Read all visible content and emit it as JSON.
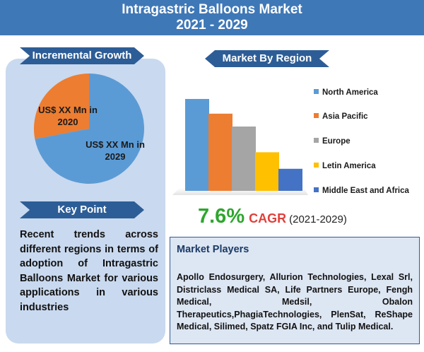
{
  "header": {
    "title_line1": "Intragastric Balloons Market",
    "title_line2": "2021 - 2029"
  },
  "incremental": {
    "ribbon_label": "Incremental Growth",
    "label_2020": "US$ XX Mn in 2020",
    "label_2029": "US$ XX Mn in 2029"
  },
  "keypoint": {
    "ribbon_label": "Key Point",
    "text": "Recent trends across different regions in terms of adoption of Intragastric Balloons Market for various applications in various industries"
  },
  "region": {
    "ribbon_label": "Market By Region"
  },
  "chart_data": [
    {
      "type": "pie",
      "title": "",
      "slices": [
        {
          "label": "US$ XX Mn in 2020",
          "value": 28,
          "color": "#ed7d31"
        },
        {
          "label": "US$ XX Mn in 2029",
          "value": 72,
          "color": "#5b9bd5"
        }
      ]
    },
    {
      "type": "bar",
      "title": "",
      "categories": [
        "North America",
        "Asia Pacific",
        "Europe",
        "Letin America",
        "Middle East and Africa"
      ],
      "values": [
        100,
        84,
        70,
        42,
        24
      ],
      "colors": [
        "#5b9bd5",
        "#ed7d31",
        "#a5a5a5",
        "#ffc000",
        "#4472c4"
      ],
      "ylim": [
        0,
        100
      ],
      "legend": "right",
      "grid": false
    }
  ],
  "cagr": {
    "value": "7.6%",
    "label": "CAGR",
    "years": "(2021-2029)"
  },
  "players": {
    "title": "Market Players",
    "text": "Apollo Endosurgery, Allurion Technologies, Lexal Srl, Districlass Medical SA, Life Partners Europe, Fengh Medical, Medsil, Obalon Therapeutics,PhagiaTechnologies, PlenSat, ReShape Medical, Silimed, Spatz FGIA Inc, and Tulip Medical."
  }
}
